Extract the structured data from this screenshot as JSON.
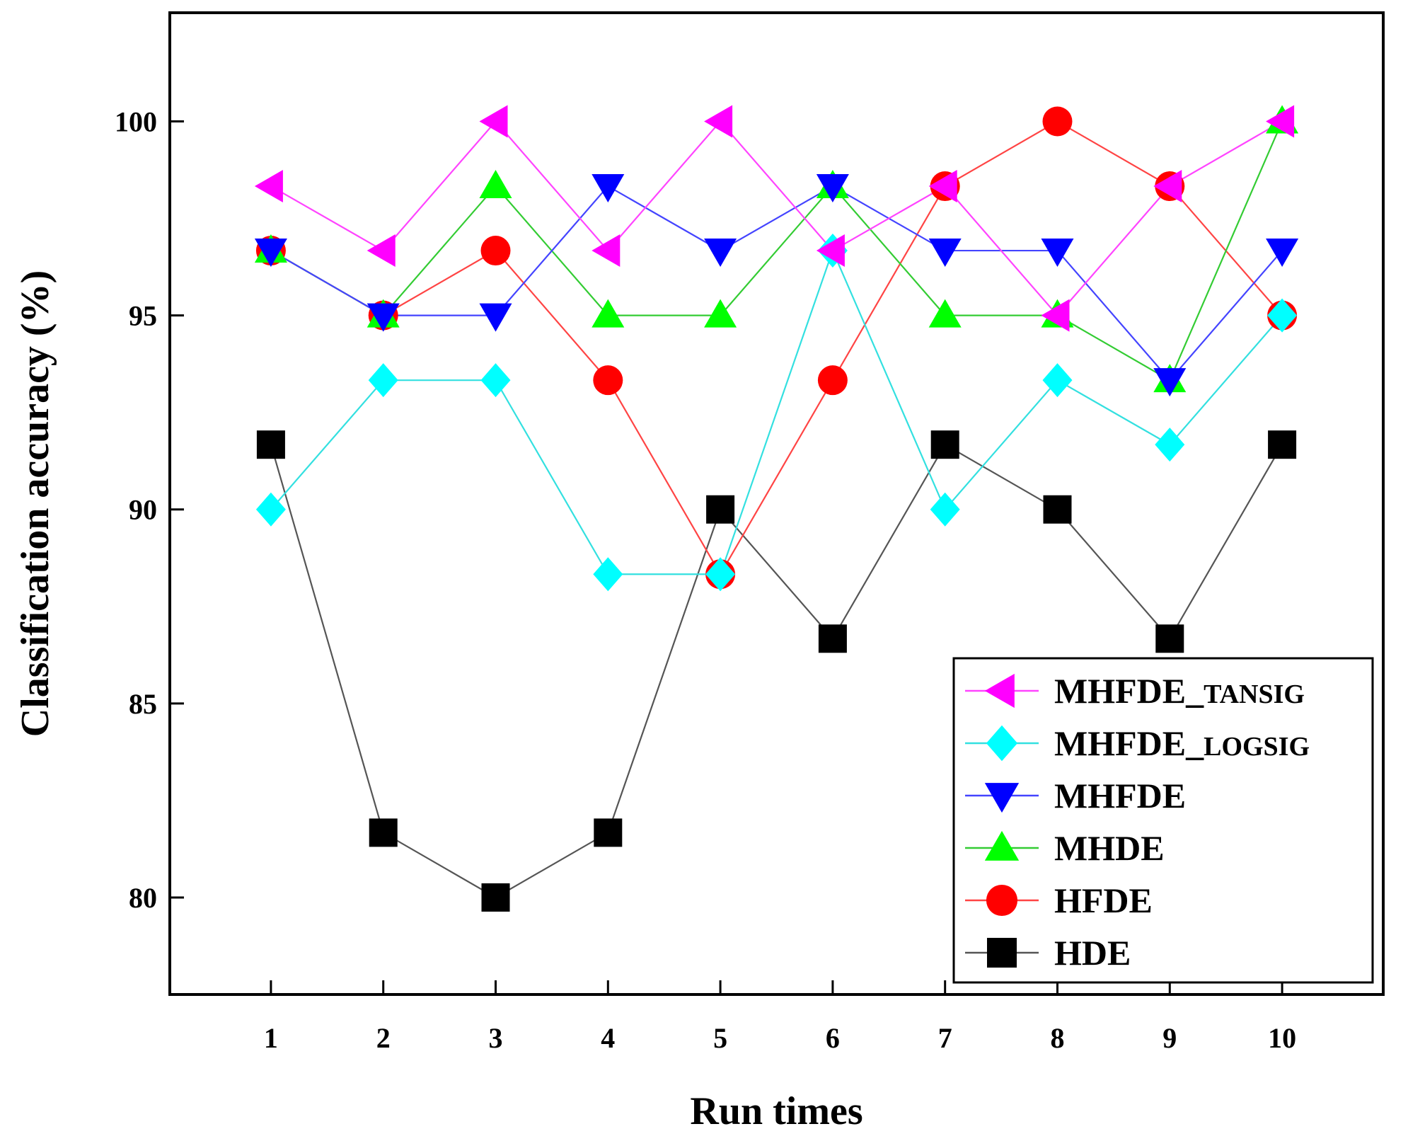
{
  "chart_data": {
    "type": "line",
    "title": "",
    "xlabel": "Run times",
    "ylabel": "Classification accuracy (%)",
    "x": [
      1,
      2,
      3,
      4,
      5,
      6,
      7,
      8,
      9,
      10
    ],
    "xtick_labels": [
      "1",
      "2",
      "3",
      "4",
      "5",
      "6",
      "7",
      "8",
      "9",
      "10"
    ],
    "xlim": [
      0.1,
      10.9
    ],
    "ylim": [
      77.5,
      102.8
    ],
    "yticks": [
      80,
      85,
      90,
      95,
      100
    ],
    "ytick_labels": [
      "80",
      "85",
      "90",
      "95",
      "100"
    ],
    "grid": false,
    "legend_position": "bottom-right",
    "series": [
      {
        "name": "HDE",
        "legend_main": "HDE",
        "legend_suffix": "",
        "color": "#000000",
        "line_color": "#555555",
        "marker": "square",
        "values": [
          91.67,
          81.67,
          80.0,
          81.67,
          90.0,
          86.67,
          91.67,
          90.0,
          86.67,
          91.67
        ]
      },
      {
        "name": "HFDE",
        "legend_main": "HFDE",
        "legend_suffix": "",
        "color": "#ff0000",
        "line_color": "#ff4444",
        "marker": "circle",
        "values": [
          96.67,
          95.0,
          96.67,
          93.33,
          88.33,
          93.33,
          98.33,
          100.0,
          98.33,
          95.0
        ]
      },
      {
        "name": "MHDE",
        "legend_main": "MHDE",
        "legend_suffix": "",
        "color": "#00ff00",
        "line_color": "#33cc33",
        "marker": "triangle-up",
        "values": [
          96.67,
          95.0,
          98.33,
          95.0,
          95.0,
          98.33,
          95.0,
          95.0,
          93.33,
          100.0
        ]
      },
      {
        "name": "MHFDE",
        "legend_main": "MHFDE",
        "legend_suffix": "",
        "color": "#0000ff",
        "line_color": "#4444ff",
        "marker": "triangle-down",
        "values": [
          96.67,
          95.0,
          95.0,
          98.33,
          96.67,
          98.33,
          96.67,
          96.67,
          93.33,
          96.67
        ]
      },
      {
        "name": "MHFDE_LOGSIG",
        "legend_main": "MHFDE_",
        "legend_suffix": "LOGSIG",
        "color": "#00ffff",
        "line_color": "#33e0e0",
        "marker": "diamond",
        "values": [
          90.0,
          93.33,
          93.33,
          88.33,
          88.33,
          96.67,
          90.0,
          93.33,
          91.67,
          95.0
        ]
      },
      {
        "name": "MHFDE_TANSIG",
        "legend_main": "MHFDE_",
        "legend_suffix": "TANSIG",
        "color": "#ff00ff",
        "line_color": "#ff44ff",
        "marker": "triangle-left",
        "values": [
          98.33,
          96.67,
          100.0,
          96.67,
          100.0,
          96.67,
          98.33,
          95.0,
          98.33,
          100.0
        ]
      }
    ],
    "legend_order": [
      "MHFDE_TANSIG",
      "MHFDE_LOGSIG",
      "MHFDE",
      "MHDE",
      "HFDE",
      "HDE"
    ]
  }
}
